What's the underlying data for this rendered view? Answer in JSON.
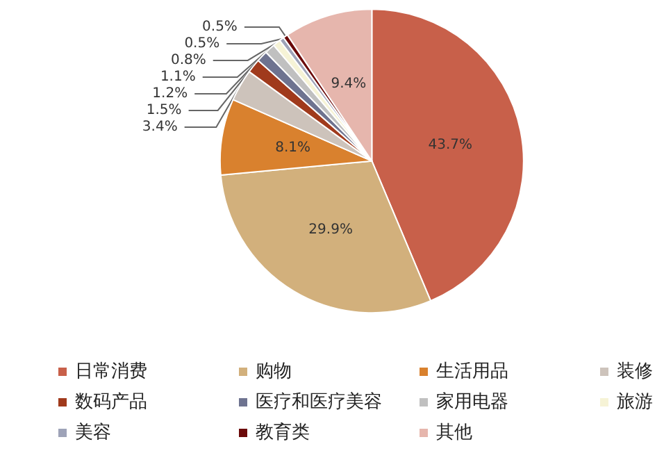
{
  "chart_data": {
    "type": "pie",
    "categories": [
      "日常消费",
      "购物",
      "生活用品",
      "装修",
      "数码产品",
      "医疗和医疗美容",
      "家用电器",
      "旅游",
      "美容",
      "教育类",
      "其他"
    ],
    "values": [
      43.7,
      29.9,
      8.1,
      3.4,
      1.5,
      1.2,
      1.1,
      0.8,
      0.5,
      0.5,
      9.4
    ],
    "value_labels": [
      "43.7%",
      "29.9%",
      "8.1%",
      "3.4%",
      "1.5%",
      "1.2%",
      "1.1%",
      "0.8%",
      "0.5%",
      "0.5%",
      "9.4%"
    ],
    "colors": [
      "#c8604a",
      "#d2b07c",
      "#d9812e",
      "#cdc3bb",
      "#a03a1c",
      "#6e7390",
      "#c0c0c0",
      "#f6f3d6",
      "#9ea3b8",
      "#6b0a0a",
      "#e6b6ad"
    ],
    "legend": "bottom"
  }
}
